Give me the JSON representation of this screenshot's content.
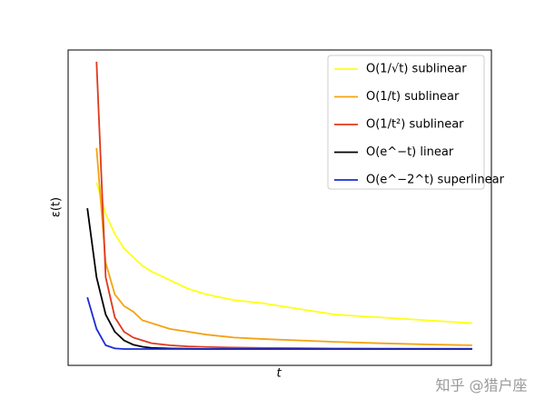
{
  "chart_data": {
    "type": "line",
    "x_label": "t",
    "y_label": "ε(t)",
    "x": [
      1,
      2,
      3,
      4,
      5,
      6,
      7,
      8,
      10,
      12,
      14,
      17,
      20,
      24,
      28,
      33,
      38,
      43
    ],
    "series": [
      {
        "name": "O(1/√t) sublinear",
        "color": "#ffff14",
        "values": [
          null,
          0.58,
          0.47,
          0.4,
          0.35,
          0.32,
          0.29,
          0.27,
          0.24,
          0.21,
          0.19,
          0.17,
          0.16,
          0.14,
          0.12,
          0.11,
          0.1,
          0.09
        ]
      },
      {
        "name": "O(1/t) sublinear",
        "color": "#f5a20f",
        "values": [
          null,
          0.7,
          0.3,
          0.19,
          0.15,
          0.13,
          0.1,
          0.09,
          0.07,
          0.06,
          0.05,
          0.04,
          0.035,
          0.03,
          0.025,
          0.02,
          0.016,
          0.013
        ]
      },
      {
        "name": "O(1/t²) sublinear",
        "color": "#e0391a",
        "values": [
          null,
          1.0,
          0.25,
          0.11,
          0.06,
          0.04,
          0.03,
          0.02,
          0.013,
          0.009,
          0.007,
          0.005,
          0.004,
          0.003,
          0.002,
          0.0015,
          0.001,
          0.001
        ]
      },
      {
        "name": "O(e^−t) linear",
        "color": "#000000",
        "values": [
          0.49,
          0.25,
          0.12,
          0.06,
          0.03,
          0.015,
          0.008,
          0.004,
          0.002,
          0.001,
          0,
          0,
          0,
          0,
          0,
          0,
          0,
          0
        ]
      },
      {
        "name": "O(e^−2^t) superlinear",
        "color": "#1a2bd6",
        "values": [
          0.18,
          0.07,
          0.013,
          0.002,
          0,
          0,
          0,
          0,
          0,
          0,
          0,
          0,
          0,
          0,
          0,
          0,
          0,
          0
        ]
      }
    ],
    "xlim": [
      -1.1,
      45.1
    ],
    "ylim": [
      -0.057,
      1.041
    ],
    "legend": "upper right"
  },
  "watermark": "知乎 @猎户座"
}
